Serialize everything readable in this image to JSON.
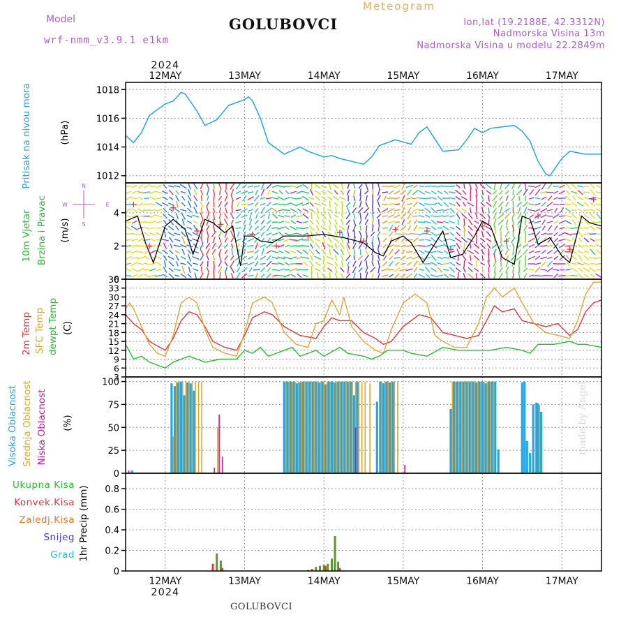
{
  "header": {
    "model_label": "Model",
    "model_name": "wrf-nmm_v3.9.1  e1km",
    "title": "GOLUBOVCI",
    "subtitle": "Meteogram",
    "lonlat": "lon,lat (19.2188E, 42.3312N)",
    "elevation": "Nadmorska Visina 13m",
    "model_elevation": "Nadmorska Visina u modelu 22.2849m",
    "footer": "GOLUBOVCI",
    "watermark": "made by Angel"
  },
  "chart_data": [
    {
      "type": "line",
      "panel": "pressure",
      "ylabel": "Pritisak na nivou mora",
      "unit": "(hPa)",
      "x_top": {
        "year": "2024",
        "days": [
          "12MAY",
          "13MAY",
          "14MAY",
          "15MAY",
          "16MAY",
          "17MAY"
        ]
      },
      "x_bottom": {
        "year": "2024",
        "days": [
          "12MAY",
          "13MAY",
          "14MAY",
          "15MAY",
          "16MAY",
          "17MAY"
        ]
      },
      "xlim_days": [
        0,
        6
      ],
      "ylim": [
        1011.5,
        1018.5
      ],
      "yticks": [
        1012,
        1014,
        1016,
        1018
      ],
      "grid": true,
      "series": [
        {
          "color": "#22a7e6",
          "x": [
            0,
            0.1,
            0.2,
            0.3,
            0.5,
            0.6,
            0.7,
            0.75,
            0.9,
            1.0,
            1.15,
            1.3,
            1.5,
            1.55,
            1.6,
            1.7,
            1.8,
            2.0,
            2.2,
            2.3,
            2.5,
            2.6,
            2.7,
            3.0,
            3.1,
            3.2,
            3.4,
            3.6,
            3.7,
            3.8,
            4.0,
            4.2,
            4.3,
            4.4,
            4.5,
            4.6,
            4.75,
            4.9,
            5.0,
            5.1,
            5.2,
            5.3,
            5.35,
            5.5,
            5.6,
            5.7,
            5.8,
            6.0
          ],
          "values": [
            1014.8,
            1014.3,
            1015.0,
            1016.2,
            1017.0,
            1017.2,
            1017.8,
            1017.7,
            1016.5,
            1015.5,
            1015.9,
            1016.9,
            1017.3,
            1017.5,
            1017.2,
            1016.0,
            1014.3,
            1013.5,
            1014.0,
            1013.7,
            1013.3,
            1013.4,
            1013.2,
            1012.8,
            1013.3,
            1014.1,
            1014.5,
            1014.2,
            1015.0,
            1015.4,
            1013.7,
            1013.8,
            1014.5,
            1015.3,
            1015.0,
            1015.3,
            1015.4,
            1015.5,
            1015.1,
            1014.4,
            1013.0,
            1012.1,
            1012.0,
            1013.2,
            1013.7,
            1013.6,
            1013.5,
            1013.5
          ]
        }
      ]
    },
    {
      "type": "line",
      "panel": "wind",
      "ylabel": "10m Vjetar Brzina i Pravac",
      "unit": "(m/s)",
      "compass": {
        "n": "N",
        "s": "S",
        "w": "W",
        "e": "E"
      },
      "ylim": [
        0,
        5.8
      ],
      "yticks": [
        0,
        2,
        4
      ],
      "grid": true,
      "series": [
        {
          "name": "wind speed",
          "color": "#000000",
          "x": [
            0,
            0.15,
            0.25,
            0.35,
            0.5,
            0.6,
            0.75,
            0.85,
            1.0,
            1.1,
            1.25,
            1.35,
            1.45,
            1.5,
            1.6,
            1.7,
            1.85,
            2.0,
            2.25,
            2.5,
            2.75,
            3.0,
            3.15,
            3.25,
            3.35,
            3.5,
            3.6,
            3.75,
            4.0,
            4.1,
            4.25,
            4.4,
            4.5,
            4.6,
            4.75,
            4.9,
            5.0,
            5.1,
            5.2,
            5.35,
            5.5,
            5.6,
            5.75,
            5.85,
            6.0
          ],
          "values": [
            3.5,
            3.8,
            2.2,
            1.0,
            3.2,
            3.6,
            3.0,
            1.5,
            3.6,
            3.4,
            2.8,
            3.2,
            0.8,
            2.6,
            2.6,
            2.3,
            2.2,
            2.6,
            2.6,
            2.7,
            2.5,
            2.2,
            1.6,
            1.4,
            2.3,
            2.6,
            2.2,
            1.0,
            2.9,
            1.3,
            1.5,
            2.6,
            3.5,
            3.2,
            1.3,
            0.9,
            3.8,
            3.6,
            2.1,
            2.5,
            1.4,
            1.0,
            3.8,
            3.4,
            3.2
          ]
        },
        {
          "name": "gust markers",
          "color": "#e8343b",
          "x": [
            0.1,
            0.3,
            0.6,
            0.9,
            1.2,
            1.6,
            1.9,
            2.3,
            2.7,
            3.0,
            3.4,
            3.8,
            4.1,
            4.5,
            4.8,
            5.2,
            5.6,
            5.9
          ],
          "values": [
            4.5,
            2.0,
            4.3,
            2.9,
            3.3,
            2.7,
            2.0,
            2.6,
            2.8,
            2.3,
            3.0,
            2.9,
            1.8,
            3.2,
            2.3,
            3.8,
            1.8,
            4.8
          ]
        }
      ]
    },
    {
      "type": "line",
      "panel": "temperature",
      "ylabel_lines": [
        "2m Temp",
        "SFC Temp",
        "dewpt Temp"
      ],
      "unit": "(C)",
      "ylim": [
        3,
        36
      ],
      "yticks": [
        3,
        6,
        9,
        12,
        15,
        18,
        21,
        24,
        27,
        30,
        33,
        36
      ],
      "grid": true,
      "series": [
        {
          "name": "2m Temp",
          "color": "#e8343b",
          "x": [
            0,
            0.1,
            0.2,
            0.3,
            0.5,
            0.6,
            0.7,
            0.8,
            0.9,
            1.0,
            1.1,
            1.25,
            1.4,
            1.5,
            1.6,
            1.75,
            1.85,
            2.0,
            2.2,
            2.4,
            2.5,
            2.6,
            2.7,
            2.85,
            3.0,
            3.15,
            3.25,
            3.35,
            3.5,
            3.7,
            3.85,
            4.0,
            4.15,
            4.3,
            4.45,
            4.55,
            4.65,
            4.75,
            4.9,
            5.0,
            5.15,
            5.3,
            5.45,
            5.6,
            5.7,
            5.8,
            5.9,
            6.0
          ],
          "values": [
            24,
            21,
            19,
            15,
            12,
            16,
            22,
            25,
            24,
            20,
            15,
            13,
            12,
            17,
            23,
            25,
            24,
            20,
            17,
            16,
            20,
            23,
            22,
            22,
            18,
            16,
            14,
            15,
            20,
            24,
            23,
            18,
            17,
            16,
            17,
            22,
            27,
            25,
            26,
            22,
            21,
            20,
            21,
            17,
            19,
            25,
            28,
            29
          ]
        },
        {
          "name": "SFC Temp",
          "color": "#e6a532",
          "x": [
            0,
            0.05,
            0.1,
            0.2,
            0.3,
            0.4,
            0.5,
            0.6,
            0.7,
            0.8,
            0.9,
            1.0,
            1.1,
            1.25,
            1.4,
            1.5,
            1.6,
            1.75,
            1.85,
            2.0,
            2.15,
            2.3,
            2.4,
            2.5,
            2.6,
            2.7,
            2.75,
            2.85,
            3.0,
            3.15,
            3.25,
            3.35,
            3.5,
            3.65,
            3.8,
            3.9,
            4.0,
            4.15,
            4.3,
            4.45,
            4.55,
            4.65,
            4.75,
            4.9,
            5.0,
            5.15,
            5.3,
            5.45,
            5.6,
            5.7,
            5.8,
            5.9,
            6.0
          ],
          "values": [
            26,
            28,
            26,
            20,
            14,
            11,
            10,
            17,
            28,
            30,
            28,
            19,
            13,
            11,
            10,
            18,
            28,
            30,
            28,
            18,
            14,
            13,
            21,
            22,
            29,
            24,
            30,
            20,
            15,
            12,
            11,
            19,
            28,
            31,
            28,
            17,
            15,
            13,
            13,
            21,
            30,
            33,
            30,
            33,
            28,
            21,
            18,
            17,
            16,
            22,
            31,
            35,
            35
          ]
        },
        {
          "name": "dewpt Temp",
          "color": "#22c22e",
          "x": [
            0,
            0.1,
            0.2,
            0.3,
            0.4,
            0.5,
            0.6,
            0.7,
            0.8,
            0.9,
            1.0,
            1.2,
            1.4,
            1.5,
            1.6,
            1.7,
            1.8,
            1.9,
            2.0,
            2.1,
            2.2,
            2.3,
            2.4,
            2.5,
            2.7,
            2.8,
            3.0,
            3.1,
            3.2,
            3.3,
            3.5,
            3.6,
            3.8,
            4.0,
            4.2,
            4.4,
            4.6,
            4.8,
            5.0,
            5.1,
            5.2,
            5.4,
            5.6,
            5.7,
            5.8,
            6.0
          ],
          "values": [
            14,
            9,
            10,
            8,
            7,
            6,
            8,
            9,
            10,
            9,
            8,
            9,
            9,
            12,
            11,
            13,
            10,
            11,
            12,
            13,
            10,
            11,
            12,
            10,
            13,
            11,
            10,
            9,
            10,
            12,
            12,
            11,
            10,
            13,
            12,
            12,
            12,
            13,
            12,
            11,
            14,
            14,
            15,
            14,
            14,
            13
          ]
        }
      ]
    },
    {
      "type": "bar",
      "panel": "cloud",
      "ylabel_lines": [
        "Visoka Oblacnost",
        "Srednja Oblacnost",
        "Niska Oblacnost"
      ],
      "unit": "(%)",
      "ylim": [
        0,
        105
      ],
      "yticks": [
        0,
        25,
        50,
        75,
        100
      ],
      "grid": true,
      "series": [
        {
          "name": "Visoka Oblacnost",
          "color": "#22a7e6",
          "x": [
            0.08,
            0.58,
            0.62,
            0.66,
            0.7,
            0.74,
            0.78,
            0.82,
            0.86,
            2.0,
            2.04,
            2.08,
            2.12,
            2.16,
            2.2,
            2.24,
            2.28,
            2.32,
            2.36,
            2.4,
            2.44,
            2.48,
            2.52,
            2.56,
            2.6,
            2.64,
            2.68,
            2.72,
            2.76,
            2.8,
            2.84,
            2.88,
            2.92,
            3.17,
            3.21,
            3.25,
            3.29,
            3.33,
            3.37,
            4.1,
            4.14,
            4.18,
            4.22,
            4.26,
            4.3,
            4.34,
            4.38,
            4.42,
            4.46,
            4.5,
            4.54,
            4.58,
            4.62,
            4.66,
            4.7,
            5.0,
            5.03,
            5.06,
            5.1,
            5.14,
            5.18,
            5.2,
            5.24
          ],
          "values": [
            3,
            98,
            95,
            99,
            100,
            85,
            99,
            98,
            90,
            100,
            100,
            100,
            100,
            98,
            99,
            100,
            100,
            100,
            100,
            100,
            99,
            100,
            97,
            100,
            100,
            99,
            100,
            100,
            100,
            100,
            100,
            85,
            100,
            78,
            100,
            98,
            100,
            99,
            100,
            70,
            100,
            100,
            100,
            100,
            100,
            100,
            100,
            99,
            100,
            100,
            98,
            100,
            100,
            100,
            26,
            99,
            100,
            35,
            22,
            75,
            77,
            76,
            67
          ]
        },
        {
          "name": "Srednja Oblacnost",
          "color": "#e6a532",
          "x": [
            0.6,
            0.64,
            0.68,
            0.72,
            0.76,
            0.8,
            0.84,
            0.88,
            0.92,
            0.96,
            1.16,
            2.02,
            2.06,
            2.1,
            2.14,
            2.18,
            2.22,
            2.26,
            2.3,
            2.34,
            2.38,
            2.42,
            2.46,
            2.5,
            2.54,
            2.58,
            2.62,
            2.66,
            2.7,
            2.74,
            2.78,
            2.82,
            2.86,
            2.9,
            2.94,
            2.98,
            3.02,
            3.08,
            3.23,
            3.27,
            3.31,
            3.35,
            3.39,
            3.43,
            4.12,
            4.16,
            4.2,
            4.24,
            4.28,
            4.32,
            4.36,
            4.4,
            4.44,
            4.48,
            4.52,
            4.56,
            4.6,
            4.64,
            5.22
          ],
          "values": [
            40,
            100,
            100,
            100,
            100,
            100,
            100,
            100,
            100,
            100,
            50,
            100,
            100,
            100,
            100,
            100,
            100,
            100,
            100,
            100,
            100,
            100,
            100,
            100,
            100,
            100,
            100,
            100,
            100,
            100,
            100,
            100,
            100,
            100,
            100,
            99,
            100,
            98,
            100,
            100,
            100,
            100,
            100,
            100,
            100,
            100,
            100,
            100,
            100,
            100,
            100,
            100,
            100,
            100,
            100,
            100,
            100,
            100,
            74
          ]
        },
        {
          "name": "Niska Oblacnost",
          "color": "#d9148c",
          "x": [
            0.04,
            1.12,
            1.18,
            1.22,
            2.9,
            3.52
          ],
          "values": [
            3,
            6,
            64,
            18,
            50,
            9
          ]
        }
      ]
    },
    {
      "type": "bar",
      "panel": "precip",
      "ylabel": "1hr Precip (mm)",
      "legend": [
        "Ukupna Kisa",
        "Konvek.Kisa",
        "Zaledj.Kisa",
        "Snijeg",
        "Grad"
      ],
      "legend_colors": [
        "#22c22e",
        "#e8343b",
        "#f07820",
        "#3a3ae0",
        "#22c8c8"
      ],
      "ylim": [
        0,
        0.95
      ],
      "yticks": [
        0,
        0.2,
        0.4,
        0.6,
        0.8
      ],
      "yticklabels": [
        "0",
        "0.2",
        "0.4",
        "0.6",
        "0.8"
      ],
      "grid": true,
      "series": [
        {
          "name": "Ukupna Kisa",
          "color": "#5a9a2a",
          "x": [
            1.15,
            1.2,
            2.3,
            2.4,
            2.45,
            2.5,
            2.55,
            2.6,
            2.64,
            2.68
          ],
          "values": [
            0.17,
            0.1,
            0.01,
            0.04,
            0.05,
            0.06,
            0.07,
            0.12,
            0.34,
            0.09
          ]
        },
        {
          "name": "Konvek.Kisa",
          "color": "#e8343b",
          "x": [
            1.1,
            1.22,
            2.35,
            2.52,
            2.7
          ],
          "values": [
            0.07,
            0.03,
            0.02,
            0.05,
            0.03
          ]
        }
      ]
    }
  ]
}
